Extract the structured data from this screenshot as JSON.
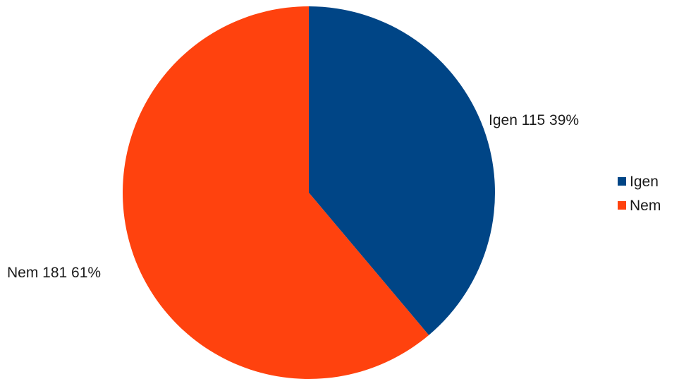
{
  "chart_data": {
    "type": "pie",
    "slices": [
      {
        "label": "Igen",
        "value": 115,
        "percent": "39%",
        "color": "#004586"
      },
      {
        "label": "Nem",
        "value": 181,
        "percent": "61%",
        "color": "#ff420e"
      }
    ],
    "legend": {
      "position": "right",
      "entries": [
        "Igen",
        "Nem"
      ]
    },
    "data_labels": [
      "Igen 115 39%",
      "Nem 181 61%"
    ]
  }
}
